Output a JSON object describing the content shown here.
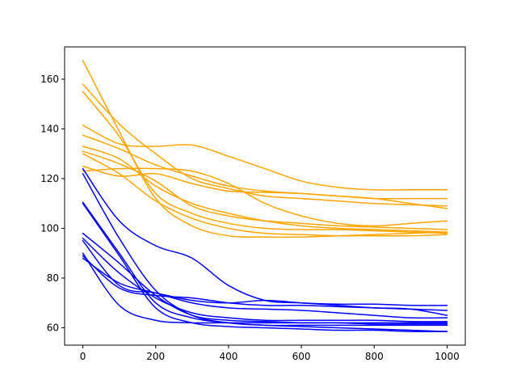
{
  "chart_data": {
    "type": "line",
    "title": "",
    "xlabel": "",
    "ylabel": "",
    "xlim": [
      -50,
      1050
    ],
    "ylim": [
      53,
      173
    ],
    "x_ticks": [
      0,
      200,
      400,
      600,
      800,
      1000
    ],
    "y_ticks": [
      60,
      80,
      100,
      120,
      140,
      160
    ],
    "x_tick_labels": [
      "0",
      "200",
      "400",
      "600",
      "800",
      "1000"
    ],
    "y_tick_labels": [
      "60",
      "80",
      "100",
      "120",
      "140",
      "160"
    ],
    "grid": false,
    "legend": "none",
    "colors": {
      "orange": "#ffa500",
      "blue": "#0000ff"
    },
    "x": [
      0,
      100,
      200,
      300,
      400,
      500,
      600,
      700,
      800,
      900,
      1000
    ],
    "series": [
      {
        "color": "orange",
        "values": [
          167.5,
          139,
          112,
          101,
          97,
          96.5,
          96.5,
          97,
          97.5,
          98,
          98.5
        ]
      },
      {
        "color": "orange",
        "values": [
          158,
          142,
          130,
          120,
          116,
          113,
          112,
          111,
          110,
          109.5,
          109
        ]
      },
      {
        "color": "orange",
        "values": [
          155,
          137,
          114,
          106,
          102,
          100,
          99.5,
          99.5,
          99,
          98.5,
          98
        ]
      },
      {
        "color": "orange",
        "values": [
          141.5,
          134,
          133,
          133.5,
          129,
          124,
          119,
          116.5,
          115.5,
          115.5,
          115.5
        ]
      },
      {
        "color": "orange",
        "values": [
          137.5,
          132,
          125.5,
          121,
          117,
          115,
          114,
          113,
          112,
          112,
          112
        ]
      },
      {
        "color": "orange",
        "values": [
          133,
          128,
          117,
          110,
          106,
          103,
          101,
          100,
          99.5,
          99,
          98.5
        ]
      },
      {
        "color": "orange",
        "values": [
          131,
          126,
          119,
          109,
          105,
          103,
          102,
          101,
          100.5,
          100,
          99.5
        ]
      },
      {
        "color": "orange",
        "values": [
          130,
          122,
          111,
          104,
          100,
          98,
          97.5,
          97,
          97,
          97,
          97.5
        ]
      },
      {
        "color": "orange",
        "values": [
          125,
          121,
          122,
          118,
          115,
          114.5,
          114,
          113,
          112,
          110,
          108
        ]
      },
      {
        "color": "orange",
        "values": [
          123,
          124,
          124,
          123,
          118,
          110,
          105,
          102,
          101,
          102,
          103
        ]
      },
      {
        "color": "blue",
        "values": [
          124,
          103,
          93,
          88,
          77,
          71,
          70,
          69.5,
          69.5,
          69,
          69
        ]
      },
      {
        "color": "blue",
        "values": [
          122,
          96,
          75,
          65,
          62,
          61,
          60.5,
          60,
          59.5,
          59,
          58.5
        ]
      },
      {
        "color": "blue",
        "values": [
          110.5,
          90,
          70,
          64,
          62,
          61,
          61,
          61,
          61,
          61,
          61
        ]
      },
      {
        "color": "blue",
        "values": [
          110,
          89,
          68,
          62,
          60.5,
          60,
          59.5,
          59,
          59,
          58.5,
          58.5
        ]
      },
      {
        "color": "blue",
        "values": [
          98,
          86,
          73,
          65,
          63,
          62.5,
          62,
          62,
          61.5,
          61.5,
          61.5
        ]
      },
      {
        "color": "blue",
        "values": [
          96,
          82,
          72,
          66,
          64,
          63,
          63,
          63,
          63,
          62.5,
          62.5
        ]
      },
      {
        "color": "blue",
        "values": [
          95,
          77,
          74,
          71,
          70,
          71,
          70,
          69,
          68,
          67.5,
          67
        ]
      },
      {
        "color": "blue",
        "values": [
          90,
          69,
          63,
          62,
          62,
          62,
          62,
          62,
          62,
          62,
          62
        ]
      },
      {
        "color": "blue",
        "values": [
          89,
          76,
          73,
          72,
          70,
          69,
          69,
          68.5,
          68,
          67.5,
          65
        ]
      },
      {
        "color": "blue",
        "values": [
          88,
          78,
          74,
          70,
          68,
          67.5,
          67,
          66,
          65,
          64,
          64
        ]
      }
    ]
  }
}
